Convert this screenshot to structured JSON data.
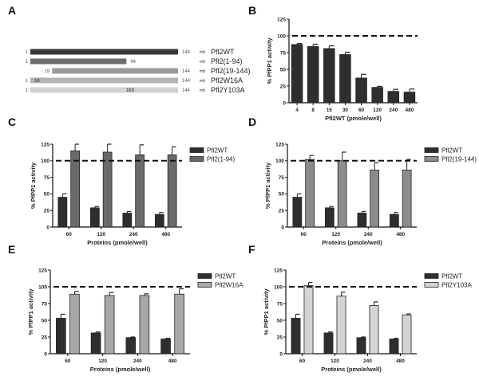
{
  "figure": {
    "panel_labels": [
      "A",
      "B",
      "C",
      "D",
      "E",
      "F"
    ]
  },
  "panel_a": {
    "label": "A",
    "constructs": [
      {
        "name": "Pfl2WT",
        "start": 1,
        "end": 144,
        "start_label": "1",
        "end_label": "144",
        "mark": "",
        "color": "#3a3a3a"
      },
      {
        "name": "Pfl2(1-94)",
        "start": 1,
        "end": 94,
        "start_label": "1",
        "end_label": "94",
        "mark": "",
        "color": "#6e6e6e"
      },
      {
        "name": "Pfl2(19-144)",
        "start": 19,
        "end": 144,
        "start_label": "19",
        "end_label": "144",
        "mark": "",
        "color": "#9a9a9a"
      },
      {
        "name": "Pfl2W16A",
        "start": 1,
        "end": 144,
        "start_label": "1",
        "end_label": "144",
        "mark": "16",
        "color": "#b4b4b4"
      },
      {
        "name": "Pfl2Y103A",
        "start": 1,
        "end": 144,
        "start_label": "1",
        "end_label": "144",
        "mark": "103",
        "color": "#d2d2d2"
      }
    ],
    "arrow_glyph": "⇨"
  },
  "chart_data": [
    {
      "panel": "B",
      "type": "bar",
      "title": "",
      "xlabel": "Pfl2WT (pmole/well)",
      "ylabel": "% PfPP1 activity",
      "ylim": [
        0,
        125
      ],
      "yticks": [
        0,
        25,
        50,
        75,
        100,
        125
      ],
      "reference_line": 100,
      "categories": [
        "4",
        "8",
        "15",
        "30",
        "60",
        "120",
        "240",
        "480"
      ],
      "series": [
        {
          "name": "Pfl2WT",
          "color": "#2e2e2e",
          "values": [
            87,
            84,
            81,
            72,
            37,
            23,
            17,
            16
          ],
          "errors": [
            1.5,
            3.5,
            4,
            3.5,
            5.5,
            1.5,
            3,
            4.5
          ]
        }
      ],
      "legend": "none"
    },
    {
      "panel": "C",
      "type": "bar",
      "xlabel": "Proteins (pmole/well)",
      "ylabel": "% PfPP1 activity",
      "ylim": [
        0,
        125
      ],
      "yticks": [
        0,
        25,
        50,
        75,
        100,
        125
      ],
      "reference_line": 100,
      "categories": [
        "60",
        "120",
        "240",
        "480"
      ],
      "series": [
        {
          "name": "Pfl2WT",
          "color": "#2e2e2e",
          "values": [
            45,
            29,
            21,
            19
          ],
          "errors": [
            5,
            2,
            2.5,
            3
          ]
        },
        {
          "name": "Pfl2(1-94)",
          "color": "#6a6a6a",
          "values": [
            115,
            113,
            109,
            109
          ],
          "errors": [
            10,
            12,
            15,
            12
          ]
        }
      ],
      "legend": "right"
    },
    {
      "panel": "D",
      "type": "bar",
      "xlabel": "Proteins (pmole/well)",
      "ylabel": "% PfPP1 activity",
      "ylim": [
        0,
        125
      ],
      "yticks": [
        0,
        25,
        50,
        75,
        100,
        125
      ],
      "reference_line": 100,
      "categories": [
        "60",
        "120",
        "240",
        "480"
      ],
      "series": [
        {
          "name": "Pfl2WT",
          "color": "#2e2e2e",
          "values": [
            45,
            29,
            21,
            19
          ],
          "errors": [
            5,
            2,
            2.5,
            3
          ]
        },
        {
          "name": "Pfl2(19-144)",
          "color": "#8c8c8c",
          "values": [
            102,
            100,
            86,
            86
          ],
          "errors": [
            6,
            13,
            11,
            16
          ]
        }
      ],
      "legend": "right"
    },
    {
      "panel": "E",
      "type": "bar",
      "xlabel": "Proteins (pmole/well)",
      "ylabel": "% PfPP1 activity",
      "ylim": [
        0,
        125
      ],
      "yticks": [
        0,
        25,
        50,
        75,
        100,
        125
      ],
      "reference_line": 100,
      "categories": [
        "60",
        "120",
        "240",
        "480"
      ],
      "series": [
        {
          "name": "Pfl2WT",
          "color": "#2e2e2e",
          "values": [
            53,
            31,
            24,
            22
          ],
          "errors": [
            6,
            1.5,
            1,
            1
          ]
        },
        {
          "name": "Pfl2W16A",
          "color": "#a8a8a8",
          "values": [
            89,
            87,
            87,
            89
          ],
          "errors": [
            4,
            4.5,
            2.5,
            8
          ]
        }
      ],
      "legend": "right"
    },
    {
      "panel": "F",
      "type": "bar",
      "xlabel": "Proteins (pmole/well)",
      "ylabel": "% PfPP1 activity",
      "ylim": [
        0,
        125
      ],
      "yticks": [
        0,
        25,
        50,
        75,
        100,
        125
      ],
      "reference_line": 100,
      "categories": [
        "60",
        "120",
        "240",
        "480"
      ],
      "series": [
        {
          "name": "Pfl2WT",
          "color": "#2e2e2e",
          "values": [
            53,
            31,
            24,
            22
          ],
          "errors": [
            6,
            1.5,
            1,
            1
          ]
        },
        {
          "name": "Pfl2Y103A",
          "color": "#d4d4d4",
          "values": [
            102,
            86,
            72,
            58
          ],
          "errors": [
            4.5,
            6,
            5.5,
            1.5
          ]
        }
      ],
      "legend": "right"
    }
  ]
}
